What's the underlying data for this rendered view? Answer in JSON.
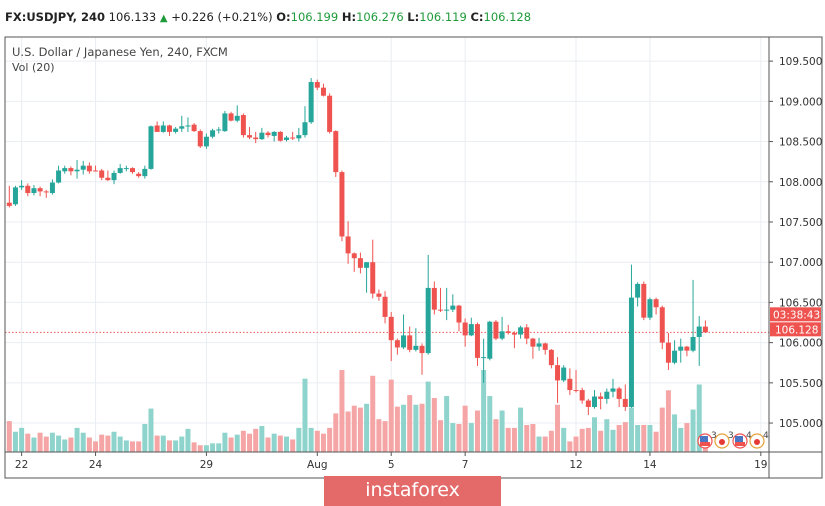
{
  "header": {
    "symbol": "FX:USDJPY, 240",
    "last": "106.133",
    "change": "+0.226 (+0.21%)",
    "o_label": "O:",
    "o": "106.199",
    "h_label": "H:",
    "h": "106.276",
    "l_label": "L:",
    "l": "106.119",
    "c_label": "C:",
    "c": "106.128"
  },
  "legend": {
    "title": "U.S. Dollar / Japanese Yen, 240, FXCM",
    "indicator": "Vol (20)"
  },
  "price_label": {
    "value": "106.128",
    "countdown": "03:38:43"
  },
  "events": [
    "3",
    "3",
    "4",
    "4"
  ],
  "watermark": "instaforex",
  "colors": {
    "up": "#26a69a",
    "down": "#ef5350",
    "vol_up": "#8fd4cc",
    "vol_down": "#f5a5a5",
    "grid": "#e9eef3",
    "price_line": "#ef5350"
  },
  "chart_data": {
    "type": "candlestick",
    "title": "U.S. Dollar / Japanese Yen, 240, FXCM",
    "ylim": [
      104.64,
      109.8
    ],
    "y_ticks": [
      "105.000",
      "105.500",
      "106.000",
      "106.500",
      "107.000",
      "107.500",
      "108.000",
      "108.500",
      "109.000",
      "109.500"
    ],
    "x_tick_labels": [
      "22",
      "24",
      "29",
      "Aug",
      "5",
      "7",
      "12",
      "14",
      "19"
    ],
    "grid": true,
    "ohlc": [
      [
        107.74,
        107.95,
        107.68,
        107.7
      ],
      [
        107.72,
        107.95,
        107.7,
        107.93
      ],
      [
        107.93,
        108.02,
        107.9,
        107.95
      ],
      [
        107.95,
        107.98,
        107.82,
        107.86
      ],
      [
        107.86,
        107.96,
        107.83,
        107.92
      ],
      [
        107.92,
        107.94,
        107.82,
        107.88
      ],
      [
        107.88,
        107.9,
        107.8,
        107.87
      ],
      [
        107.86,
        108.03,
        107.84,
        107.99
      ],
      [
        107.99,
        108.2,
        107.98,
        108.14
      ],
      [
        108.13,
        108.2,
        108.1,
        108.17
      ],
      [
        108.17,
        108.19,
        108.08,
        108.13
      ],
      [
        108.13,
        108.27,
        108.04,
        108.15
      ],
      [
        108.15,
        108.26,
        108.09,
        108.2
      ],
      [
        108.2,
        108.24,
        108.1,
        108.13
      ],
      [
        108.14,
        108.2,
        108.13,
        108.13
      ],
      [
        108.14,
        108.16,
        108.02,
        108.05
      ],
      [
        108.05,
        108.14,
        108.01,
        108.02
      ],
      [
        108.02,
        108.14,
        107.97,
        108.11
      ],
      [
        108.11,
        108.22,
        108.1,
        108.17
      ],
      [
        108.17,
        108.2,
        108.13,
        108.17
      ],
      [
        108.17,
        108.18,
        108.1,
        108.12
      ],
      [
        108.1,
        108.12,
        108.05,
        108.07
      ],
      [
        108.07,
        108.2,
        108.04,
        108.16
      ],
      [
        108.16,
        108.7,
        108.15,
        108.69
      ],
      [
        108.7,
        108.75,
        108.62,
        108.62
      ],
      [
        108.62,
        108.75,
        108.61,
        108.7
      ],
      [
        108.7,
        108.71,
        108.57,
        108.62
      ],
      [
        108.62,
        108.68,
        108.6,
        108.66
      ],
      [
        108.66,
        108.82,
        108.62,
        108.69
      ],
      [
        108.69,
        108.8,
        108.62,
        108.7
      ],
      [
        108.71,
        108.73,
        108.62,
        108.63
      ],
      [
        108.63,
        108.65,
        108.42,
        108.44
      ],
      [
        108.44,
        108.6,
        108.41,
        108.56
      ],
      [
        108.56,
        108.66,
        108.54,
        108.64
      ],
      [
        108.64,
        108.68,
        108.6,
        108.65
      ],
      [
        108.63,
        108.88,
        108.62,
        108.85
      ],
      [
        108.85,
        108.87,
        108.75,
        108.76
      ],
      [
        108.76,
        108.95,
        108.74,
        108.82
      ],
      [
        108.83,
        108.85,
        108.55,
        108.58
      ],
      [
        108.58,
        108.68,
        108.53,
        108.55
      ],
      [
        108.55,
        108.62,
        108.48,
        108.53
      ],
      [
        108.53,
        108.67,
        108.52,
        108.61
      ],
      [
        108.61,
        108.63,
        108.55,
        108.58
      ],
      [
        108.57,
        108.63,
        108.5,
        108.62
      ],
      [
        108.62,
        108.63,
        108.5,
        108.51
      ],
      [
        108.52,
        108.57,
        108.5,
        108.55
      ],
      [
        108.55,
        108.62,
        108.52,
        108.54
      ],
      [
        108.54,
        108.67,
        108.5,
        108.58
      ],
      [
        108.58,
        108.94,
        108.55,
        108.74
      ],
      [
        108.74,
        109.29,
        108.72,
        109.24
      ],
      [
        109.24,
        109.27,
        109.14,
        109.17
      ],
      [
        109.17,
        109.22,
        109.06,
        109.07
      ],
      [
        109.07,
        109.1,
        108.6,
        108.62
      ],
      [
        108.63,
        108.64,
        108.06,
        108.12
      ],
      [
        108.12,
        108.14,
        107.26,
        107.32
      ],
      [
        107.32,
        107.51,
        106.98,
        107.11
      ],
      [
        107.11,
        107.12,
        106.88,
        107.05
      ],
      [
        107.05,
        107.12,
        106.86,
        106.93
      ],
      [
        106.93,
        107.0,
        106.62,
        107.0
      ],
      [
        107.0,
        107.28,
        106.55,
        106.61
      ],
      [
        106.61,
        106.66,
        106.52,
        106.57
      ],
      [
        106.57,
        106.64,
        106.24,
        106.32
      ],
      [
        106.32,
        106.38,
        105.77,
        106.03
      ],
      [
        106.03,
        106.05,
        105.85,
        105.94
      ],
      [
        105.94,
        106.35,
        105.92,
        106.09
      ],
      [
        106.09,
        106.2,
        105.88,
        105.91
      ],
      [
        105.91,
        106.18,
        105.89,
        105.96
      ],
      [
        105.96,
        105.99,
        105.6,
        105.87
      ],
      [
        105.87,
        107.09,
        105.85,
        106.68
      ],
      [
        106.68,
        106.76,
        106.35,
        106.41
      ],
      [
        106.41,
        106.68,
        106.38,
        106.4
      ],
      [
        106.4,
        106.68,
        106.28,
        106.41
      ],
      [
        106.41,
        106.6,
        106.38,
        106.46
      ],
      [
        106.46,
        106.47,
        106.14,
        106.25
      ],
      [
        106.25,
        106.3,
        105.95,
        106.09
      ],
      [
        106.09,
        106.31,
        106.08,
        106.23
      ],
      [
        106.23,
        106.25,
        105.71,
        105.81
      ],
      [
        105.82,
        106.05,
        105.5,
        105.82
      ],
      [
        105.8,
        106.27,
        105.78,
        106.26
      ],
      [
        106.26,
        106.28,
        106.03,
        106.05
      ],
      [
        106.05,
        106.32,
        106.03,
        106.14
      ],
      [
        106.14,
        106.22,
        106.1,
        106.12
      ],
      [
        106.12,
        106.14,
        105.93,
        106.1
      ],
      [
        106.1,
        106.21,
        106.05,
        106.19
      ],
      [
        106.19,
        106.23,
        105.98,
        106.05
      ],
      [
        106.05,
        106.06,
        105.8,
        105.95
      ],
      [
        105.95,
        106.06,
        105.9,
        105.99
      ],
      [
        105.99,
        106.0,
        105.85,
        105.91
      ],
      [
        105.91,
        105.92,
        105.68,
        105.72
      ],
      [
        105.72,
        105.82,
        105.25,
        105.53
      ],
      [
        105.53,
        105.72,
        105.51,
        105.69
      ],
      [
        105.55,
        105.68,
        105.35,
        105.41
      ],
      [
        105.41,
        105.66,
        105.38,
        105.4
      ],
      [
        105.41,
        105.44,
        105.24,
        105.28
      ],
      [
        105.28,
        105.3,
        105.1,
        105.2
      ],
      [
        105.2,
        105.41,
        105.18,
        105.33
      ],
      [
        105.33,
        105.38,
        105.17,
        105.3
      ],
      [
        105.3,
        105.43,
        105.24,
        105.39
      ],
      [
        105.39,
        105.55,
        105.32,
        105.43
      ],
      [
        105.43,
        105.45,
        105.2,
        105.3
      ],
      [
        105.3,
        105.48,
        105.15,
        105.2
      ],
      [
        105.2,
        106.97,
        105.19,
        106.56
      ],
      [
        106.56,
        106.75,
        106.45,
        106.73
      ],
      [
        106.73,
        106.76,
        106.28,
        106.31
      ],
      [
        106.31,
        106.56,
        106.28,
        106.54
      ],
      [
        106.54,
        106.56,
        106.35,
        106.44
      ],
      [
        106.44,
        106.46,
        105.92,
        106.0
      ],
      [
        106.0,
        106.12,
        105.66,
        105.75
      ],
      [
        105.75,
        106.03,
        105.73,
        105.9
      ],
      [
        105.9,
        106.05,
        105.75,
        105.95
      ],
      [
        105.95,
        105.96,
        105.83,
        105.9
      ],
      [
        105.9,
        106.78,
        105.88,
        106.07
      ],
      [
        106.07,
        106.33,
        105.71,
        106.2
      ],
      [
        106.199,
        106.276,
        106.119,
        106.128
      ]
    ],
    "volume": [
      32,
      21,
      25,
      19,
      15,
      20,
      16,
      20,
      17,
      13,
      15,
      25,
      20,
      15,
      11,
      18,
      17,
      21,
      16,
      12,
      11,
      11,
      29,
      45,
      17,
      17,
      12,
      12,
      16,
      24,
      10,
      7,
      7,
      9,
      9,
      20,
      15,
      18,
      22,
      19,
      24,
      27,
      15,
      19,
      17,
      16,
      13,
      25,
      76,
      25,
      22,
      19,
      25,
      40,
      85,
      42,
      48,
      46,
      50,
      79,
      34,
      32,
      75,
      47,
      49,
      59,
      49,
      50,
      73,
      56,
      33,
      58,
      30,
      29,
      48,
      30,
      43,
      85,
      58,
      34,
      43,
      25,
      25,
      46,
      28,
      29,
      16,
      16,
      22,
      49,
      25,
      11,
      16,
      24,
      25,
      36,
      22,
      34,
      23,
      28,
      31,
      46,
      28,
      28,
      28,
      21,
      46,
      64,
      39,
      25,
      30,
      44,
      70,
      8
    ],
    "current_price": 106.128
  }
}
